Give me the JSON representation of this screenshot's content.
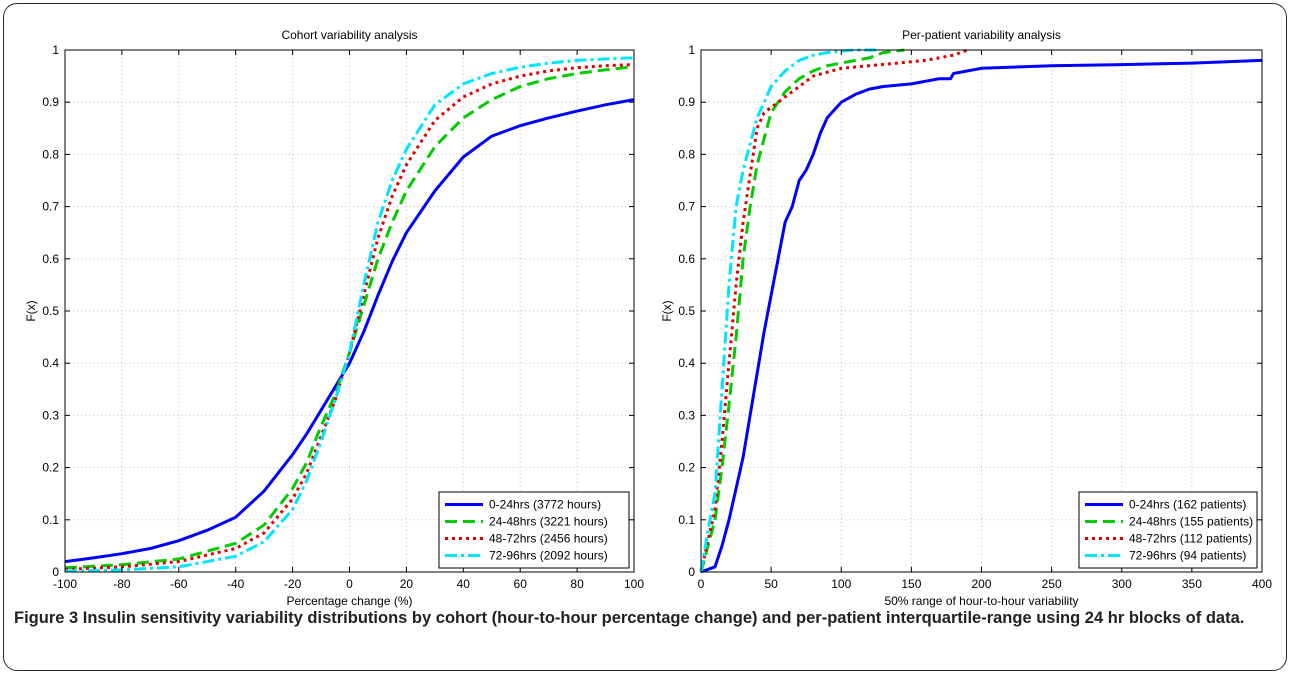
{
  "chart_data": [
    {
      "type": "line",
      "title": "Cohort variability analysis",
      "xlabel": "Percentage change (%)",
      "ylabel": "F(x)",
      "xlim": [
        -100,
        100
      ],
      "ylim": [
        0,
        1
      ],
      "xticks": [
        -100,
        -80,
        -60,
        -40,
        -20,
        0,
        20,
        40,
        60,
        80,
        100
      ],
      "yticks": [
        0,
        0.1,
        0.2,
        0.3,
        0.4,
        0.5,
        0.6,
        0.7,
        0.8,
        0.9,
        1
      ],
      "grid": true,
      "legend_position": "bottom-right",
      "series": [
        {
          "name": "0-24hrs (3772 hours)",
          "color": "#0000ff",
          "dash": "solid",
          "width": 3,
          "x": [
            -100,
            -90,
            -80,
            -70,
            -60,
            -50,
            -40,
            -30,
            -20,
            -15,
            -10,
            -5,
            0,
            5,
            10,
            15,
            20,
            30,
            40,
            50,
            60,
            70,
            80,
            90,
            100
          ],
          "y": [
            0.02,
            0.027,
            0.035,
            0.045,
            0.06,
            0.08,
            0.105,
            0.155,
            0.225,
            0.265,
            0.31,
            0.355,
            0.4,
            0.46,
            0.53,
            0.595,
            0.65,
            0.73,
            0.795,
            0.835,
            0.855,
            0.87,
            0.883,
            0.895,
            0.905
          ]
        },
        {
          "name": "24-48hrs (3221 hours)",
          "color": "#00cc00",
          "dash": "12,6",
          "width": 3,
          "x": [
            -100,
            -80,
            -60,
            -40,
            -30,
            -20,
            -15,
            -10,
            -5,
            0,
            5,
            10,
            15,
            20,
            30,
            40,
            50,
            60,
            70,
            80,
            90,
            100
          ],
          "y": [
            0.008,
            0.014,
            0.025,
            0.055,
            0.09,
            0.16,
            0.21,
            0.28,
            0.34,
            0.42,
            0.51,
            0.6,
            0.67,
            0.73,
            0.815,
            0.87,
            0.905,
            0.93,
            0.945,
            0.955,
            0.962,
            0.968
          ]
        },
        {
          "name": "48-72hrs (2456 hours)",
          "color": "#e00000",
          "dash": "3,4",
          "width": 3,
          "x": [
            -100,
            -80,
            -60,
            -40,
            -30,
            -20,
            -15,
            -10,
            -5,
            0,
            5,
            10,
            15,
            20,
            30,
            40,
            50,
            60,
            70,
            80,
            90,
            100
          ],
          "y": [
            0.005,
            0.01,
            0.02,
            0.045,
            0.075,
            0.14,
            0.19,
            0.26,
            0.33,
            0.42,
            0.53,
            0.64,
            0.72,
            0.78,
            0.865,
            0.91,
            0.935,
            0.95,
            0.96,
            0.966,
            0.97,
            0.972
          ]
        },
        {
          "name": "72-96hrs (2092 hours)",
          "color": "#00e5ff",
          "dash": "12,4,3,4",
          "width": 3,
          "x": [
            -100,
            -80,
            -60,
            -40,
            -30,
            -20,
            -15,
            -10,
            -5,
            0,
            5,
            10,
            15,
            20,
            30,
            40,
            50,
            60,
            70,
            80,
            90,
            100
          ],
          "y": [
            0.002,
            0.004,
            0.01,
            0.03,
            0.058,
            0.12,
            0.175,
            0.25,
            0.33,
            0.42,
            0.55,
            0.67,
            0.75,
            0.81,
            0.895,
            0.935,
            0.955,
            0.967,
            0.975,
            0.98,
            0.983,
            0.985
          ]
        }
      ],
      "legend": [
        "0-24hrs (3772 hours)",
        "24-48hrs (3221 hours)",
        "48-72hrs (2456 hours)",
        "72-96hrs (2092 hours)"
      ]
    },
    {
      "type": "line",
      "title": "Per-patient variability analysis",
      "xlabel": "50% range of hour-to-hour variability",
      "ylabel": "F(x)",
      "xlim": [
        0,
        400
      ],
      "ylim": [
        0,
        1
      ],
      "xticks": [
        0,
        50,
        100,
        150,
        200,
        250,
        300,
        350,
        400
      ],
      "yticks": [
        0,
        0.1,
        0.2,
        0.3,
        0.4,
        0.5,
        0.6,
        0.7,
        0.8,
        0.9,
        1
      ],
      "grid": true,
      "legend_position": "bottom-right",
      "series": [
        {
          "name": "0-24hrs (162 patients)",
          "color": "#0000ff",
          "dash": "solid",
          "width": 3,
          "x": [
            0,
            10,
            15,
            20,
            25,
            30,
            35,
            40,
            45,
            50,
            55,
            60,
            65,
            70,
            75,
            80,
            85,
            90,
            95,
            100,
            110,
            120,
            130,
            150,
            170,
            178,
            180,
            200,
            250,
            300,
            350,
            400
          ],
          "y": [
            0,
            0.01,
            0.05,
            0.1,
            0.16,
            0.22,
            0.3,
            0.38,
            0.46,
            0.53,
            0.6,
            0.67,
            0.7,
            0.75,
            0.77,
            0.8,
            0.84,
            0.87,
            0.885,
            0.9,
            0.915,
            0.925,
            0.93,
            0.935,
            0.945,
            0.945,
            0.955,
            0.965,
            0.97,
            0.972,
            0.975,
            0.98
          ]
        },
        {
          "name": "24-48hrs (155 patients)",
          "color": "#00cc00",
          "dash": "12,6",
          "width": 3,
          "x": [
            0,
            5,
            10,
            15,
            20,
            25,
            30,
            35,
            40,
            45,
            50,
            55,
            60,
            70,
            80,
            90,
            100,
            110,
            120,
            130,
            145
          ],
          "y": [
            0,
            0.05,
            0.1,
            0.2,
            0.32,
            0.45,
            0.6,
            0.7,
            0.78,
            0.83,
            0.88,
            0.9,
            0.92,
            0.945,
            0.96,
            0.97,
            0.975,
            0.98,
            0.985,
            0.995,
            1.0
          ]
        },
        {
          "name": "48-72hrs (112 patients)",
          "color": "#e00000",
          "dash": "3,4",
          "width": 3,
          "x": [
            0,
            5,
            10,
            15,
            20,
            25,
            30,
            35,
            40,
            45,
            50,
            60,
            80,
            100,
            120,
            140,
            160,
            180,
            190
          ],
          "y": [
            0,
            0.06,
            0.12,
            0.25,
            0.4,
            0.55,
            0.67,
            0.76,
            0.85,
            0.88,
            0.89,
            0.91,
            0.95,
            0.965,
            0.97,
            0.975,
            0.98,
            0.99,
            1.0
          ]
        },
        {
          "name": "72-96hrs (94 patients)",
          "color": "#00e5ff",
          "dash": "12,4,3,4",
          "width": 3,
          "x": [
            0,
            5,
            10,
            15,
            20,
            25,
            30,
            35,
            40,
            50,
            60,
            70,
            80,
            90,
            100,
            110,
            125
          ],
          "y": [
            0,
            0.08,
            0.15,
            0.35,
            0.55,
            0.7,
            0.77,
            0.82,
            0.87,
            0.93,
            0.96,
            0.98,
            0.99,
            0.995,
            0.998,
            1.0,
            1.0
          ]
        }
      ],
      "legend": [
        "0-24hrs (162 patients)",
        "24-48hrs (155 patients)",
        "48-72hrs (112 patients)",
        "72-96hrs (94 patients)"
      ]
    }
  ],
  "caption": {
    "label": "Figure 3",
    "text": " Insulin sensitivity variability distributions by cohort (hour-to-hour percentage change) and per-patient interquartile-range using 24 hr blocks of data."
  }
}
